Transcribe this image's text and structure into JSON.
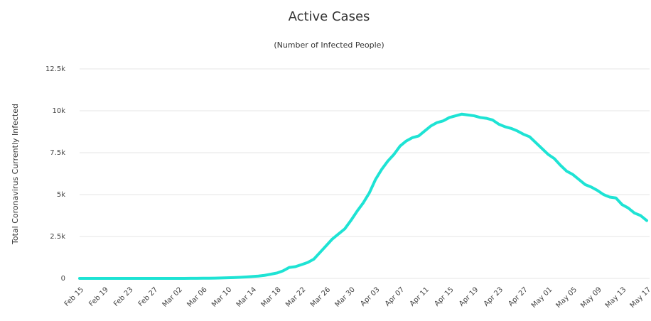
{
  "chart_data": {
    "type": "line",
    "title": "Active Cases",
    "subtitle": "(Number of Infected People)",
    "y_label": "Total Coronavirus Currently Infected",
    "categories": [
      "Feb 15",
      null,
      null,
      null,
      "Feb 19",
      null,
      null,
      null,
      "Feb 23",
      null,
      null,
      null,
      "Feb 27",
      null,
      null,
      null,
      "Mar 02",
      null,
      null,
      null,
      "Mar 06",
      null,
      null,
      null,
      "Mar 10",
      null,
      null,
      null,
      "Mar 14",
      null,
      null,
      null,
      "Mar 18",
      null,
      null,
      null,
      "Mar 22",
      null,
      null,
      null,
      "Mar 26",
      null,
      null,
      null,
      "Mar 30",
      null,
      null,
      null,
      "Apr 03",
      null,
      null,
      null,
      "Apr 07",
      null,
      null,
      null,
      "Apr 11",
      null,
      null,
      null,
      "Apr 15",
      null,
      null,
      null,
      "Apr 19",
      null,
      null,
      null,
      "Apr 23",
      null,
      null,
      null,
      "Apr 27",
      null,
      null,
      null,
      "May 01",
      null,
      null,
      null,
      "May 05",
      null,
      null,
      null,
      "May 09",
      null,
      null,
      null,
      "May 13",
      null,
      null,
      null,
      "May 17"
    ],
    "values": [
      0,
      0,
      0,
      0,
      0,
      0,
      0,
      0,
      0,
      0,
      0,
      0,
      0,
      0,
      0,
      0,
      1,
      2,
      3,
      5,
      8,
      12,
      18,
      25,
      35,
      50,
      65,
      85,
      110,
      140,
      180,
      250,
      320,
      450,
      650,
      700,
      820,
      950,
      1150,
      1550,
      1950,
      2350,
      2650,
      2950,
      3450,
      4000,
      4500,
      5100,
      5900,
      6500,
      7000,
      7400,
      7900,
      8200,
      8400,
      8500,
      8800,
      9100,
      9300,
      9400,
      9600,
      9700,
      9800,
      9750,
      9700,
      9600,
      9550,
      9450,
      9200,
      9050,
      8950,
      8800,
      8600,
      8450,
      8100,
      7750,
      7400,
      7150,
      6750,
      6400,
      6200,
      5900,
      5600,
      5450,
      5250,
      5000,
      4850,
      4800,
      4400,
      4200,
      3900,
      3750,
      3450
    ],
    "color": "#1ee3d4",
    "ylim": [
      0,
      12500
    ],
    "yticks": [
      0,
      {
        "value": 2500,
        "label": "2.5k"
      },
      {
        "value": 5000,
        "label": "5k"
      },
      {
        "value": 7500,
        "label": "7.5k"
      },
      {
        "value": 10000,
        "label": "10k"
      },
      {
        "value": 12500,
        "label": "12.5k"
      }
    ],
    "grid": true
  }
}
